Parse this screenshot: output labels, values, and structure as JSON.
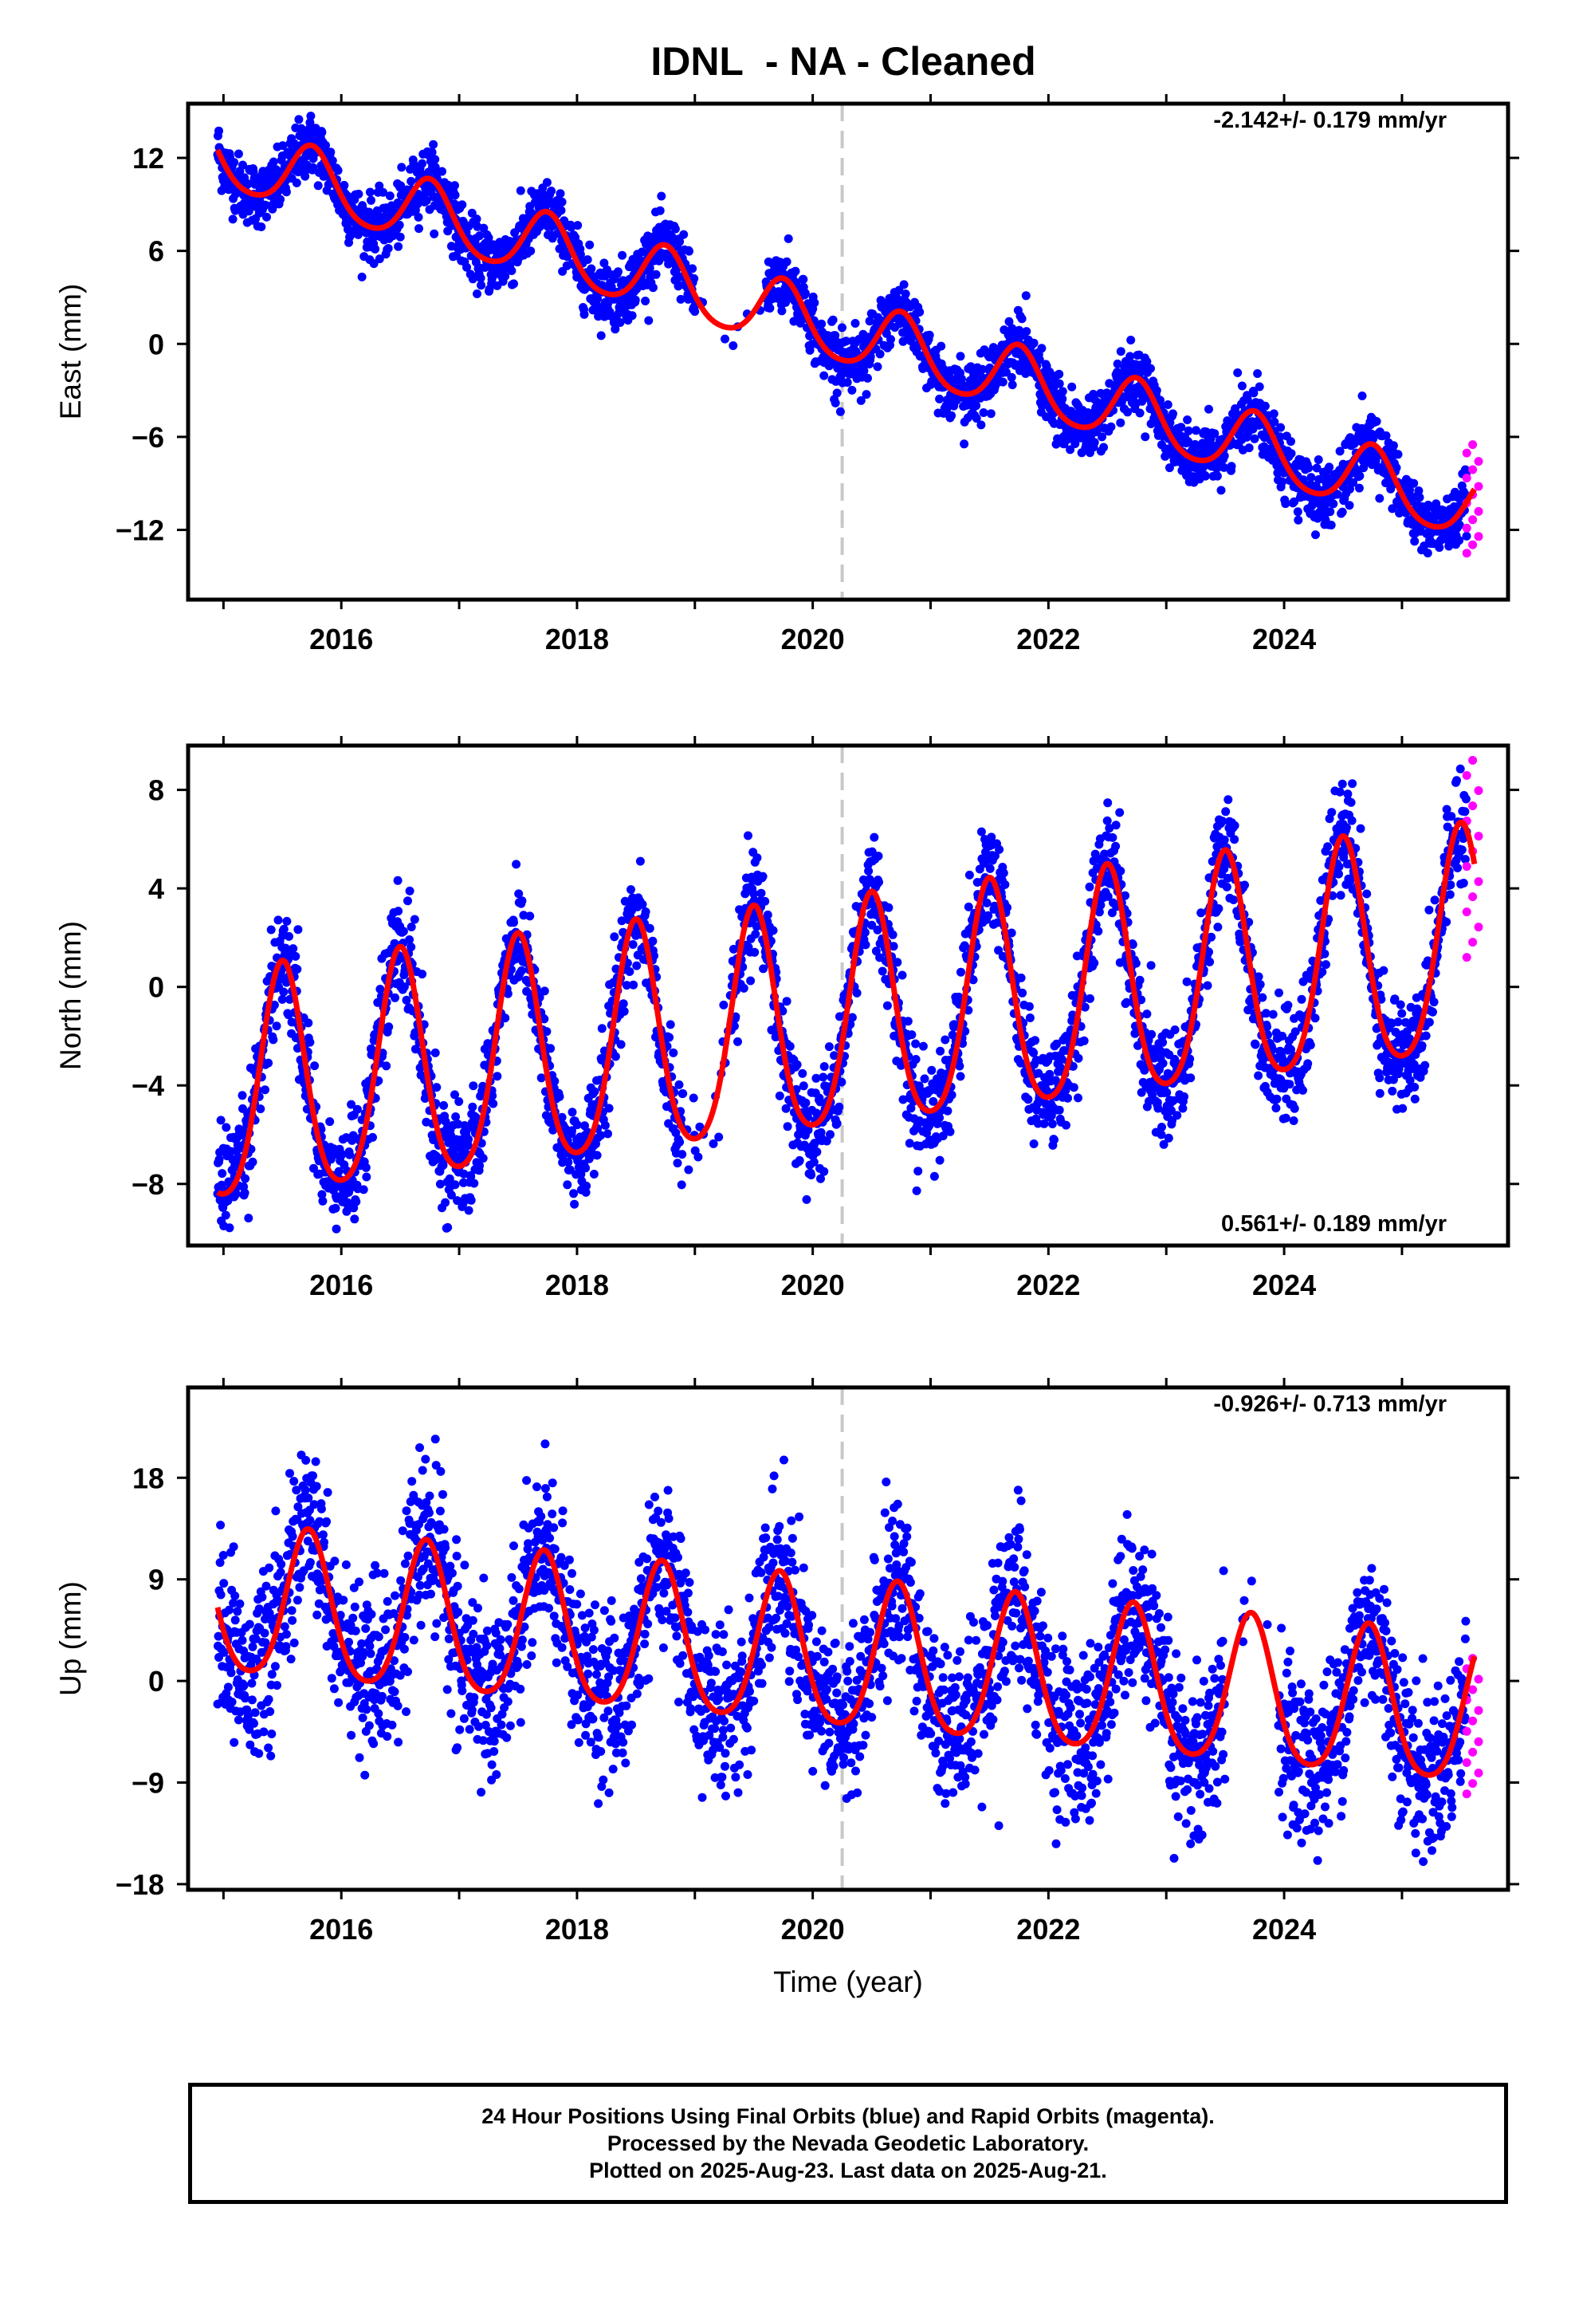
{
  "title": "IDNL  - NA - Cleaned",
  "colors": {
    "final": "#0000ff",
    "rapid": "#ff00ff",
    "model": "#ff0000",
    "marker": "#c8c8c8",
    "frame": "#000000"
  },
  "footer": {
    "line1": "24 Hour Positions Using Final Orbits (blue) and Rapid Orbits (magenta).",
    "line2": "Processed by the Nevada Geodetic Laboratory.",
    "line3": "Plotted on 2025-Aug-23. Last data on 2025-Aug-21."
  },
  "chart_data": [
    {
      "type": "scatter",
      "ylabel": "East (mm)",
      "xlabel": "",
      "rate": "-2.142+/- 0.179 mm/yr",
      "rate_position": "top-right",
      "xlim": [
        2014.7,
        2025.9
      ],
      "ylim": [
        -16.5,
        15.5
      ],
      "yticks": [
        12,
        6,
        0,
        -6,
        -12
      ],
      "xticks": [
        2016,
        2018,
        2020,
        2022,
        2024
      ],
      "equipment_change": 2020.25,
      "model": {
        "offset": 1.3,
        "trend": -2.142,
        "annual_amp": 2.1,
        "annual_phase_peak": 2015.75,
        "semiannual_amp": 0.3
      },
      "noise": 1.0,
      "gap": [
        2019.0,
        2019.6
      ],
      "rapid": {
        "start": 2025.55,
        "end": 2025.65,
        "min": -13.5,
        "max": -6.5
      }
    },
    {
      "type": "scatter",
      "ylabel": "North (mm)",
      "xlabel": "",
      "rate": "0.561+/- 0.189 mm/yr",
      "rate_position": "bottom-right",
      "xlim": [
        2014.7,
        2025.9
      ],
      "ylim": [
        -10.5,
        9.8
      ],
      "yticks": [
        8,
        4,
        0,
        -4,
        -8
      ],
      "xticks": [
        2016,
        2018,
        2020,
        2022,
        2024
      ],
      "equipment_change": 2020.25,
      "model": {
        "offset": -1.7,
        "trend": 0.561,
        "annual_amp": 4.6,
        "annual_phase_peak": 2015.5,
        "semiannual_amp": 0.7
      },
      "noise": 1.1,
      "gap": [
        2018.9,
        2019.3
      ],
      "rapid": {
        "start": 2025.55,
        "end": 2025.65,
        "min": 1.2,
        "max": 9.2
      }
    },
    {
      "type": "scatter",
      "ylabel": "Up (mm)",
      "xlabel": "Time (year)",
      "rate": "-0.926+/- 0.713 mm/yr",
      "rate_position": "top-right",
      "xlim": [
        2014.7,
        2025.9
      ],
      "ylim": [
        -18.5,
        26
      ],
      "yticks": [
        18,
        9,
        0,
        -9,
        -18
      ],
      "xticks": [
        2016,
        2018,
        2020,
        2022,
        2024
      ],
      "equipment_change": 2020.25,
      "model": {
        "offset": 2.0,
        "trend": -0.926,
        "annual_amp": 6.5,
        "annual_phase_peak": 2015.72,
        "semiannual_amp": 1.0
      },
      "noise": 3.6,
      "gap": [
        2023.5,
        2023.95
      ],
      "rapid": {
        "start": 2025.55,
        "end": 2025.65,
        "min": -10,
        "max": 2
      }
    }
  ]
}
